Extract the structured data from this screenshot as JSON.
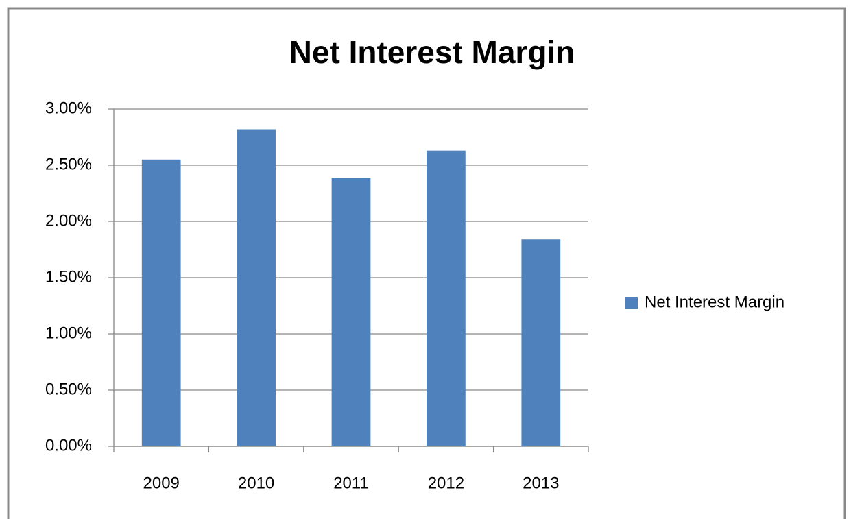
{
  "chart_data": {
    "type": "bar",
    "title": "Net Interest Margin",
    "categories": [
      "2009",
      "2010",
      "2011",
      "2012",
      "2013"
    ],
    "series": [
      {
        "name": "Net Interest Margin",
        "color": "#4f81bd",
        "values": [
          2.55,
          2.82,
          2.39,
          2.63,
          1.84
        ]
      }
    ],
    "ylim": [
      0,
      3
    ],
    "yticks": [
      {
        "value": 0,
        "label": "0.00%"
      },
      {
        "value": 0.5,
        "label": "0.50%"
      },
      {
        "value": 1,
        "label": "1.00%"
      },
      {
        "value": 1.5,
        "label": "1.50%"
      },
      {
        "value": 2,
        "label": "2.00%"
      },
      {
        "value": 2.5,
        "label": "2.50%"
      },
      {
        "value": 3,
        "label": "3.00%"
      }
    ],
    "grid": true,
    "legend": "right"
  }
}
